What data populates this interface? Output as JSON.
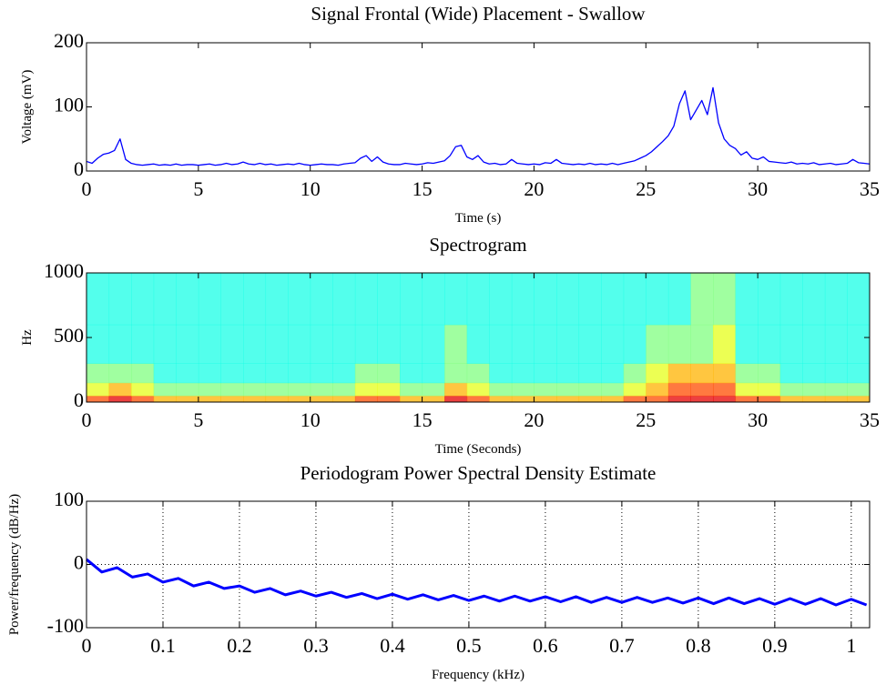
{
  "chart_data": [
    {
      "type": "line",
      "title": "Signal Frontal (Wide) Placement - Swallow",
      "x_label": "Time (s)",
      "y_label": "Voltage (mV)",
      "color": "#0000ff",
      "grid": false,
      "xlim": [
        0,
        35
      ],
      "ylim": [
        0,
        200
      ],
      "xticks": [
        0,
        5,
        10,
        15,
        20,
        25,
        30,
        35
      ],
      "yticks": [
        0,
        100,
        200
      ],
      "x": [
        0,
        0.25,
        0.5,
        0.75,
        1,
        1.25,
        1.5,
        1.75,
        2,
        2.25,
        2.5,
        2.75,
        3,
        3.25,
        3.5,
        3.75,
        4,
        4.25,
        4.5,
        4.75,
        5,
        5.25,
        5.5,
        5.75,
        6,
        6.25,
        6.5,
        6.75,
        7,
        7.25,
        7.5,
        7.75,
        8,
        8.25,
        8.5,
        8.75,
        9,
        9.25,
        9.5,
        9.75,
        10,
        10.25,
        10.5,
        10.75,
        11,
        11.25,
        11.5,
        11.75,
        12,
        12.25,
        12.5,
        12.75,
        13,
        13.25,
        13.5,
        13.75,
        14,
        14.25,
        14.5,
        14.75,
        15,
        15.25,
        15.5,
        15.75,
        16,
        16.25,
        16.5,
        16.75,
        17,
        17.25,
        17.5,
        17.75,
        18,
        18.25,
        18.5,
        18.75,
        19,
        19.25,
        19.5,
        19.75,
        20,
        20.25,
        20.5,
        20.75,
        21,
        21.25,
        21.5,
        21.75,
        22,
        22.25,
        22.5,
        22.75,
        23,
        23.25,
        23.5,
        23.75,
        24,
        24.25,
        24.5,
        24.75,
        25,
        25.25,
        25.5,
        25.75,
        26,
        26.25,
        26.5,
        26.75,
        27,
        27.25,
        27.5,
        27.75,
        28,
        28.25,
        28.5,
        28.75,
        29,
        29.25,
        29.5,
        29.75,
        30,
        30.25,
        30.5,
        30.75,
        31,
        31.25,
        31.5,
        31.75,
        32,
        32.25,
        32.5,
        32.75,
        33,
        33.25,
        33.5,
        33.75,
        34,
        34.25,
        34.5,
        34.75,
        35
      ],
      "values": [
        15,
        12,
        20,
        26,
        28,
        32,
        50,
        18,
        12,
        10,
        9,
        10,
        11,
        9,
        10,
        9,
        11,
        9,
        10,
        10,
        9,
        10,
        11,
        9,
        10,
        12,
        10,
        11,
        14,
        11,
        10,
        12,
        10,
        11,
        9,
        10,
        11,
        10,
        12,
        10,
        9,
        10,
        11,
        10,
        10,
        9,
        11,
        12,
        13,
        20,
        24,
        15,
        22,
        14,
        11,
        10,
        10,
        12,
        11,
        10,
        11,
        13,
        12,
        14,
        16,
        24,
        38,
        40,
        22,
        18,
        24,
        14,
        11,
        12,
        10,
        11,
        18,
        12,
        11,
        10,
        11,
        10,
        13,
        12,
        18,
        12,
        11,
        10,
        11,
        10,
        12,
        10,
        11,
        10,
        12,
        10,
        12,
        14,
        16,
        20,
        24,
        30,
        38,
        46,
        55,
        70,
        105,
        125,
        80,
        95,
        110,
        88,
        130,
        75,
        50,
        40,
        35,
        25,
        30,
        20,
        18,
        22,
        15,
        14,
        13,
        12,
        14,
        11,
        12,
        11,
        13,
        10,
        11,
        12,
        10,
        11,
        12,
        18,
        13,
        12,
        11
      ]
    },
    {
      "type": "heatmap",
      "title": "Spectrogram",
      "x_label": "Time (Seconds)",
      "y_label": "Hz",
      "grid": false,
      "xlim": [
        0,
        35
      ],
      "ylim": [
        0,
        1000
      ],
      "xticks": [
        0,
        5,
        10,
        15,
        20,
        25,
        30,
        35
      ],
      "yticks": [
        0,
        500,
        1000
      ],
      "clim": [
        0,
        10
      ],
      "time_bins": [
        0,
        1,
        2,
        3,
        4,
        5,
        6,
        7,
        8,
        9,
        10,
        11,
        12,
        13,
        14,
        15,
        16,
        17,
        18,
        19,
        20,
        21,
        22,
        23,
        24,
        25,
        26,
        27,
        28,
        29,
        30,
        31,
        32,
        33,
        34,
        35
      ],
      "freq_bins": [
        0,
        50,
        150,
        300,
        600,
        1000
      ],
      "values": [
        [
          8,
          9,
          8,
          7,
          7,
          7,
          7,
          7,
          7,
          7,
          7,
          7,
          8,
          8,
          7,
          7,
          9,
          8,
          7,
          7,
          7,
          7,
          7,
          7,
          8,
          8,
          9,
          9,
          9,
          8,
          8,
          7,
          7,
          7,
          7
        ],
        [
          6,
          7,
          6,
          5,
          5,
          5,
          5,
          5,
          5,
          5,
          5,
          5,
          6,
          6,
          5,
          5,
          7,
          6,
          5,
          5,
          5,
          5,
          5,
          5,
          6,
          7,
          8,
          8,
          8,
          6,
          6,
          5,
          5,
          5,
          5
        ],
        [
          5,
          5,
          5,
          4,
          4,
          4,
          4,
          4,
          4,
          4,
          4,
          4,
          5,
          5,
          4,
          4,
          5,
          5,
          4,
          4,
          4,
          4,
          4,
          4,
          5,
          6,
          7,
          7,
          7,
          5,
          5,
          4,
          4,
          4,
          4
        ],
        [
          4,
          4,
          4,
          4,
          4,
          4,
          4,
          4,
          4,
          4,
          4,
          4,
          4,
          4,
          4,
          4,
          5,
          4,
          4,
          4,
          4,
          4,
          4,
          4,
          4,
          5,
          5,
          5,
          6,
          4,
          4,
          4,
          4,
          4,
          4
        ],
        [
          4,
          4,
          4,
          4,
          4,
          4,
          4,
          4,
          4,
          4,
          4,
          4,
          4,
          4,
          4,
          4,
          4,
          4,
          4,
          4,
          4,
          4,
          4,
          4,
          4,
          4,
          4,
          5,
          5,
          4,
          4,
          4,
          4,
          4,
          4
        ]
      ]
    },
    {
      "type": "line",
      "title": "Periodogram Power Spectral Density Estimate",
      "x_label": "Frequency (kHz)",
      "y_label": "Power/frequency (dB/Hz)",
      "color": "#0000ff",
      "grid": true,
      "xlim": [
        0,
        1.024
      ],
      "ylim": [
        -100,
        100
      ],
      "xticks": [
        0,
        0.1,
        0.2,
        0.3,
        0.4,
        0.5,
        0.6,
        0.7,
        0.8,
        0.9,
        1
      ],
      "yticks": [
        -100,
        0,
        100
      ],
      "x": [
        0,
        0.02,
        0.04,
        0.06,
        0.08,
        0.1,
        0.12,
        0.14,
        0.16,
        0.18,
        0.2,
        0.22,
        0.24,
        0.26,
        0.28,
        0.3,
        0.32,
        0.34,
        0.36,
        0.38,
        0.4,
        0.42,
        0.44,
        0.46,
        0.48,
        0.5,
        0.52,
        0.54,
        0.56,
        0.58,
        0.6,
        0.62,
        0.64,
        0.66,
        0.68,
        0.7,
        0.72,
        0.74,
        0.76,
        0.78,
        0.8,
        0.82,
        0.84,
        0.86,
        0.88,
        0.9,
        0.92,
        0.94,
        0.96,
        0.98,
        1,
        1.02
      ],
      "values": [
        8,
        -12,
        -5,
        -20,
        -15,
        -28,
        -22,
        -34,
        -28,
        -38,
        -34,
        -44,
        -38,
        -48,
        -42,
        -50,
        -44,
        -52,
        -46,
        -54,
        -47,
        -55,
        -48,
        -56,
        -49,
        -57,
        -50,
        -58,
        -50,
        -58,
        -51,
        -59,
        -51,
        -60,
        -52,
        -60,
        -52,
        -60,
        -53,
        -61,
        -53,
        -62,
        -53,
        -62,
        -54,
        -63,
        -54,
        -63,
        -54,
        -64,
        -55,
        -64
      ]
    }
  ]
}
